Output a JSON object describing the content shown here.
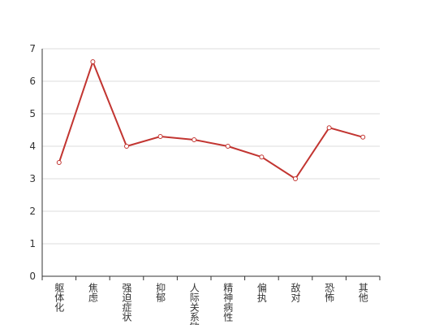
{
  "chart_data": {
    "type": "line",
    "categories": [
      "躯体化",
      "焦虑",
      "强迫症状",
      "抑郁",
      "人际关系敏感",
      "精神病性",
      "偏执",
      "敌对",
      "恐怖",
      "其他"
    ],
    "series": [
      {
        "color": "#c23531",
        "values": [
          3.5,
          6.6,
          4.0,
          4.3,
          4.2,
          4.0,
          3.67,
          3.0,
          4.57,
          4.28
        ]
      }
    ],
    "ylim": [
      0,
      7
    ],
    "yticks": [
      0,
      1,
      2,
      3,
      4,
      5,
      6,
      7
    ],
    "grid": true
  }
}
